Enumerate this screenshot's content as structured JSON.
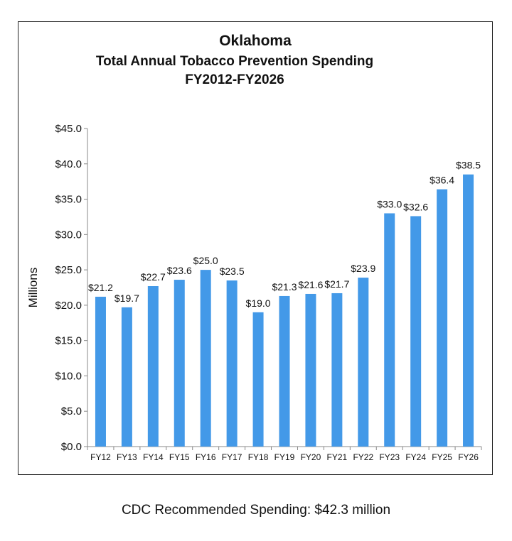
{
  "chart_data": {
    "type": "bar",
    "title": "Oklahoma",
    "subtitle": "Total Annual Tobacco Prevention Spending",
    "subtitle2": "FY2012-FY2026",
    "ylabel": "Millions",
    "xlabel": "",
    "ylim": [
      0,
      45
    ],
    "yticks": [
      "$0.0",
      "$5.0",
      "$10.0",
      "$15.0",
      "$20.0",
      "$25.0",
      "$30.0",
      "$35.0",
      "$40.0",
      "$45.0"
    ],
    "categories": [
      "FY12",
      "FY13",
      "FY14",
      "FY15",
      "FY16",
      "FY17",
      "FY18",
      "FY19",
      "FY20",
      "FY21",
      "FY22",
      "FY23",
      "FY24",
      "FY25",
      "FY26"
    ],
    "values": [
      21.2,
      19.7,
      22.7,
      23.6,
      25.0,
      23.5,
      19.0,
      21.3,
      21.6,
      21.7,
      23.9,
      33.0,
      32.6,
      36.4,
      38.5
    ],
    "data_labels": [
      "$21.2",
      "$19.7",
      "$22.7",
      "$23.6",
      "$25.0",
      "$23.5",
      "$19.0",
      "$21.3",
      "$21.6",
      "$21.7",
      "$23.9",
      "$33.0",
      "$32.6",
      "$36.4",
      "$38.5"
    ],
    "bar_color": "#4399e8",
    "grid": false,
    "legend": "none"
  },
  "footer": "CDC Recommended Spending: $42.3 million"
}
